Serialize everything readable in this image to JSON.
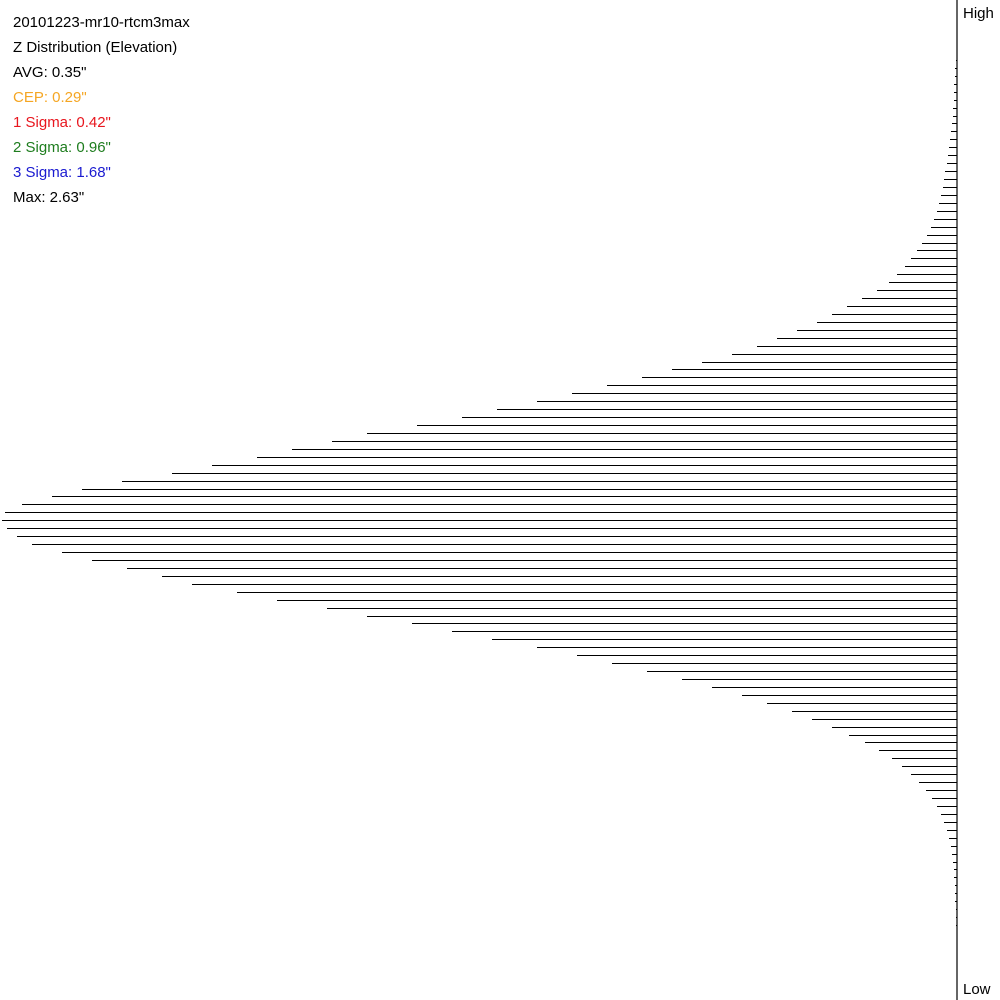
{
  "header": {
    "run_name": "20101223-mr10-rtcm3max",
    "subtitle": "Z Distribution (Elevation)"
  },
  "stats": {
    "avg": {
      "text": "AVG: 0.35\"",
      "color": "#000000"
    },
    "cep": {
      "text": "CEP: 0.29\"",
      "color": "#f5a623"
    },
    "sigma1": {
      "text": "1 Sigma: 0.42\"",
      "color": "#e8161e"
    },
    "sigma2": {
      "text": "2 Sigma: 0.96\"",
      "color": "#1e7d1e"
    },
    "sigma3": {
      "text": "3 Sigma: 1.68\"",
      "color": "#1a1ad0"
    },
    "max": {
      "text": "Max: 2.63\"",
      "color": "#000000"
    }
  },
  "axis": {
    "top_label": "High",
    "bottom_label": "Low"
  },
  "chart_data": {
    "type": "bar",
    "orientation": "horizontal",
    "title": "Z Distribution (Elevation)",
    "xlabel": "",
    "ylabel": "",
    "y_top_label": "High",
    "y_bottom_label": "Low",
    "values": [
      1,
      2,
      2,
      3,
      3,
      3,
      4,
      4,
      5,
      6,
      7,
      8,
      9,
      10,
      12,
      13,
      14,
      16,
      18,
      20,
      23,
      26,
      30,
      35,
      40,
      46,
      52,
      60,
      68,
      80,
      95,
      110,
      125,
      140,
      160,
      180,
      200,
      225,
      255,
      285,
      315,
      350,
      385,
      420,
      460,
      495,
      540,
      590,
      625,
      665,
      700,
      745,
      785,
      835,
      875,
      905,
      935,
      952,
      955,
      950,
      940,
      925,
      895,
      865,
      830,
      795,
      765,
      720,
      680,
      630,
      590,
      545,
      505,
      465,
      420,
      380,
      345,
      310,
      275,
      245,
      215,
      190,
      165,
      145,
      125,
      108,
      92,
      78,
      65,
      55,
      46,
      38,
      31,
      25,
      20,
      16,
      13,
      10,
      8,
      6,
      5,
      4,
      3,
      3,
      2,
      2,
      2,
      1,
      1,
      1
    ],
    "grid": false,
    "legend": "none"
  }
}
